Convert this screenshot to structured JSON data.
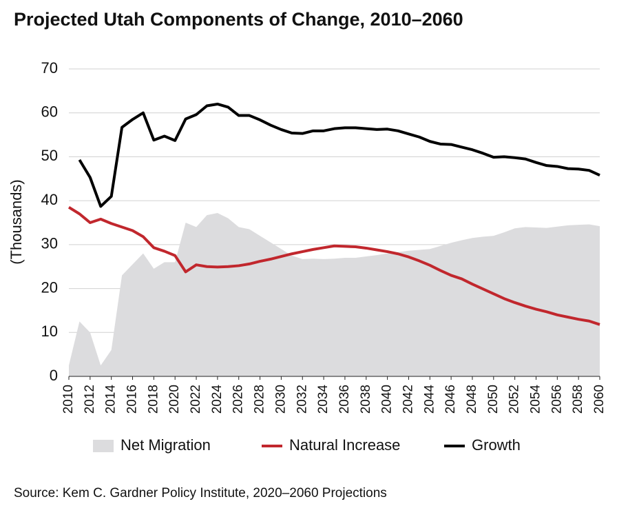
{
  "chart_data": {
    "type": "line",
    "title": "Projected Utah Components of Change, 2010–2060",
    "y_label": "(Thousands)",
    "source": "Source: Kem C. Gardner Policy Institute, 2020–2060 Projections",
    "x": [
      2010,
      2011,
      2012,
      2013,
      2014,
      2015,
      2016,
      2017,
      2018,
      2019,
      2020,
      2021,
      2022,
      2023,
      2024,
      2025,
      2026,
      2027,
      2028,
      2029,
      2030,
      2031,
      2032,
      2033,
      2034,
      2035,
      2036,
      2037,
      2038,
      2039,
      2040,
      2041,
      2042,
      2043,
      2044,
      2045,
      2046,
      2047,
      2048,
      2049,
      2050,
      2051,
      2052,
      2053,
      2054,
      2055,
      2056,
      2057,
      2058,
      2059,
      2060
    ],
    "xlim": [
      2010,
      2060
    ],
    "xticks": [
      2010,
      2012,
      2014,
      2016,
      2018,
      2020,
      2022,
      2024,
      2026,
      2028,
      2030,
      2032,
      2034,
      2036,
      2038,
      2040,
      2042,
      2044,
      2046,
      2048,
      2050,
      2052,
      2054,
      2056,
      2058,
      2060
    ],
    "ylim": [
      0,
      70
    ],
    "yticks": [
      0,
      10,
      20,
      30,
      40,
      50,
      60,
      70
    ],
    "grid": true,
    "legend": "bottom",
    "series": [
      {
        "name": "Net Migration",
        "type": "area",
        "color": "#dcdcde",
        "values": [
          2.5,
          12.5,
          10,
          2.5,
          6,
          23,
          25.5,
          28,
          24.5,
          26,
          26,
          35,
          34,
          36.7,
          37.2,
          36,
          34,
          33.5,
          32,
          30.5,
          29,
          27.5,
          26.7,
          26.8,
          26.7,
          26.8,
          27,
          27,
          27.3,
          27.6,
          28,
          28.3,
          28.6,
          28.8,
          29,
          29.7,
          30.4,
          31,
          31.5,
          31.8,
          32,
          32.8,
          33.7,
          34,
          33.9,
          33.8,
          34.1,
          34.4,
          34.5,
          34.6,
          34.2
        ]
      },
      {
        "name": "Natural Increase",
        "type": "line",
        "color": "#c1272d",
        "values": [
          38.5,
          37,
          35,
          35.8,
          34.8,
          34,
          33.2,
          31.8,
          29.3,
          28.5,
          27.5,
          23.8,
          25.4,
          25,
          24.9,
          25,
          25.2,
          25.6,
          26.2,
          26.7,
          27.3,
          27.9,
          28.4,
          28.9,
          29.3,
          29.7,
          29.6,
          29.5,
          29.2,
          28.8,
          28.4,
          27.9,
          27.2,
          26.3,
          25.3,
          24.1,
          23,
          22.2,
          21,
          19.9,
          18.8,
          17.7,
          16.8,
          16,
          15.3,
          14.7,
          14,
          13.5,
          13,
          12.6,
          11.8
        ]
      },
      {
        "name": "Growth",
        "type": "line",
        "color": "#000000",
        "values": [
          null,
          49.3,
          45.3,
          38.7,
          41,
          56.7,
          58.5,
          60,
          53.8,
          54.7,
          53.7,
          58.6,
          59.6,
          61.6,
          62,
          61.3,
          59.4,
          59.4,
          58.4,
          57.2,
          56.2,
          55.4,
          55.3,
          55.9,
          55.9,
          56.4,
          56.6,
          56.6,
          56.4,
          56.2,
          56.3,
          55.9,
          55.2,
          54.5,
          53.5,
          52.9,
          52.8,
          52.2,
          51.6,
          50.8,
          49.9,
          50,
          49.8,
          49.5,
          48.7,
          48,
          47.8,
          47.3,
          47.2,
          46.9,
          45.8
        ]
      }
    ]
  }
}
